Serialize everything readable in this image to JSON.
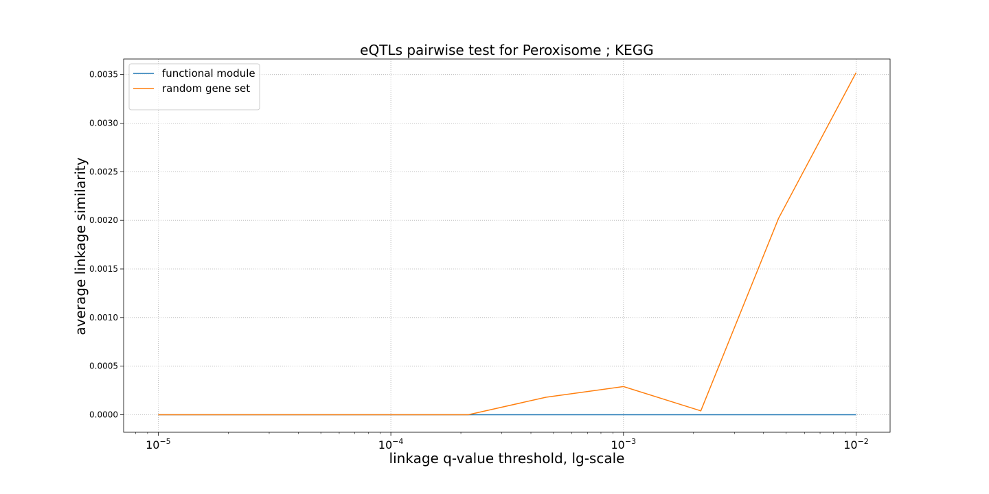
{
  "chart_data": {
    "type": "line",
    "title": "eQTLs pairwise test for Peroxisome ; KEGG",
    "xlabel": "linkage q-value threshold, lg-scale",
    "ylabel": "average linkage similarity",
    "x_scale": "log",
    "x": [
      1e-05,
      2.15e-05,
      4.64e-05,
      0.0001,
      0.000215,
      0.000464,
      0.001,
      0.00215,
      0.00464,
      0.01
    ],
    "xlim": [
      7.1e-06,
      0.014
    ],
    "ylim": [
      -0.00018,
      0.00366
    ],
    "x_ticks": [
      {
        "value": 1e-05,
        "base": "10",
        "exp": "−5"
      },
      {
        "value": 0.0001,
        "base": "10",
        "exp": "−4"
      },
      {
        "value": 0.001,
        "base": "10",
        "exp": "−3"
      },
      {
        "value": 0.01,
        "base": "10",
        "exp": "−2"
      }
    ],
    "y_ticks": [
      {
        "value": 0.0,
        "label": "0.0000"
      },
      {
        "value": 0.0005,
        "label": "0.0005"
      },
      {
        "value": 0.001,
        "label": "0.0010"
      },
      {
        "value": 0.0015,
        "label": "0.0015"
      },
      {
        "value": 0.002,
        "label": "0.0020"
      },
      {
        "value": 0.0025,
        "label": "0.0025"
      },
      {
        "value": 0.003,
        "label": "0.0030"
      },
      {
        "value": 0.0035,
        "label": "0.0035"
      }
    ],
    "grid": true,
    "legend_position": "top-left",
    "series": [
      {
        "name": "functional module",
        "color": "#1f77b4",
        "values": [
          0,
          0,
          0,
          0,
          0,
          0,
          0,
          0,
          0,
          0
        ]
      },
      {
        "name": "random gene set",
        "color": "#ff7f0e",
        "values": [
          0,
          0,
          0,
          0,
          0,
          0.00018,
          0.00029,
          4e-05,
          0.00202,
          0.00352
        ]
      }
    ]
  }
}
